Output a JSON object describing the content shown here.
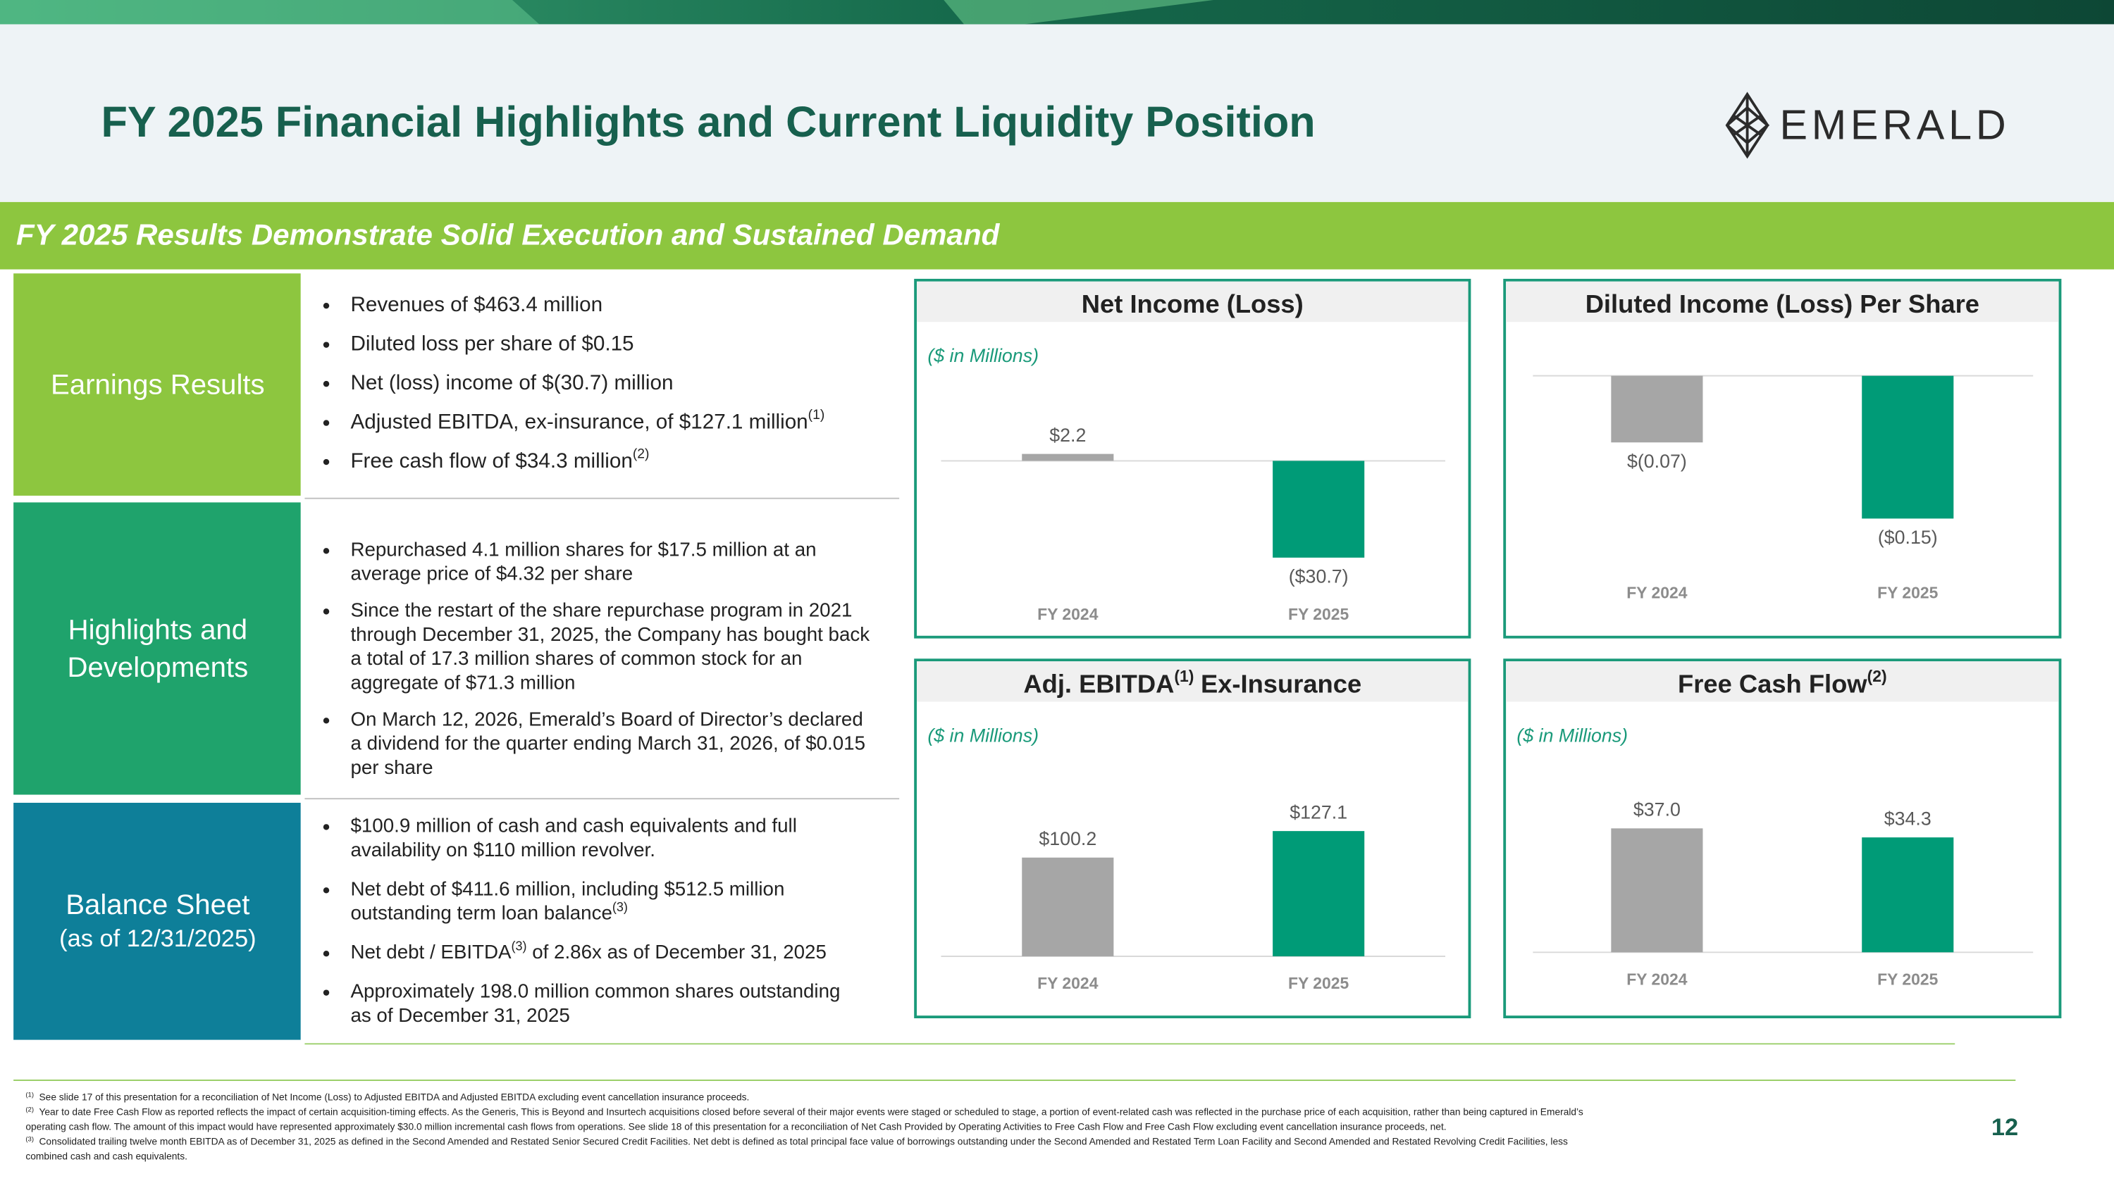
{
  "header": {
    "title": "FY 2025 Financial Highlights and Current Liquidity Position",
    "logo": "EMERALD",
    "banner": "FY 2025 Results Demonstrate Solid Execution and Sustained Demand"
  },
  "sections": [
    {
      "label": [
        "Earnings Results"
      ],
      "bullets": [
        [
          {
            "text": "Revenues of $463.4 million"
          }
        ],
        [
          {
            "text": "Diluted loss per share of $0.15"
          }
        ],
        [
          {
            "text": "Net (loss) income of $(30.7) million"
          }
        ],
        [
          {
            "text": "Adjusted EBITDA, ex-insurance, of $127.1 million",
            "sup": "(1)"
          }
        ],
        [
          {
            "text": "Free cash flow of $34.3 million",
            "sup": "(2)"
          }
        ]
      ]
    },
    {
      "label": [
        "Highlights and",
        "Developments"
      ],
      "bullets": [
        [
          {
            "text": "Repurchased 4.1 million shares for $17.5 million at an"
          },
          {
            "text": "average price of $4.32 per share"
          }
        ],
        [
          {
            "text": "Since the restart of the share repurchase program in 2021"
          },
          {
            "text": "through December 31, 2025, the Company has bought back"
          },
          {
            "text": "a total of 17.3 million shares of common stock for an"
          },
          {
            "text": "aggregate of $71.3 million"
          }
        ],
        [
          {
            "text": "On March 12, 2026, Emerald’s Board of Director’s declared"
          },
          {
            "text": "a dividend for the quarter ending March 31, 2026, of $0.015"
          },
          {
            "text": "per share"
          }
        ]
      ]
    },
    {
      "label": [
        "Balance Sheet",
        "(as of 12/31/2025)"
      ],
      "bullets": [
        [
          {
            "text": "$100.9 million of cash and cash equivalents and full"
          },
          {
            "text": "availability on $110 million revolver."
          }
        ],
        [
          {
            "text": "Net debt of $411.6 million, including $512.5 million"
          },
          {
            "text": "outstanding term loan balance",
            "sup": "(3)"
          }
        ],
        [
          {
            "text": "Net debt / EBITDA",
            "sup": "(3)",
            "after": " of 2.86x as of December 31, 2025"
          }
        ],
        [
          {
            "text": "Approximately 198.0 million common shares outstanding"
          },
          {
            "text": "as of December 31, 2025"
          }
        ]
      ]
    }
  ],
  "chart_data": [
    {
      "type": "bar",
      "title": "Net Income (Loss)",
      "subtitle": "($ in Millions)",
      "categories": [
        "FY 2024",
        "FY 2025"
      ],
      "values": [
        2.2,
        -30.7
      ],
      "value_labels": [
        "$2.2",
        "($30.7)"
      ],
      "colors": [
        "#a6a6a6",
        "#009b77"
      ]
    },
    {
      "type": "bar",
      "title": "Diluted Income (Loss) Per Share",
      "categories": [
        "FY 2024",
        "FY 2025"
      ],
      "values": [
        -0.07,
        -0.15
      ],
      "value_labels": [
        "$(0.07)",
        "($0.15)"
      ],
      "colors": [
        "#a6a6a6",
        "#009b77"
      ]
    },
    {
      "type": "bar",
      "title": "Adj. EBITDA",
      "title_sup": "(1)",
      "title_suffix": "Ex-Insurance",
      "subtitle": "($ in Millions)",
      "categories": [
        "FY 2024",
        "FY 2025"
      ],
      "values": [
        100.2,
        127.1
      ],
      "value_labels": [
        "$100.2",
        "$127.1"
      ],
      "colors": [
        "#a6a6a6",
        "#009b77"
      ]
    },
    {
      "type": "bar",
      "title": "Free Cash Flow",
      "title_sup": "(2)",
      "subtitle": "($ in Millions)",
      "categories": [
        "FY 2024",
        "FY 2025"
      ],
      "values": [
        37.0,
        34.3
      ],
      "value_labels": [
        "$37.0",
        "$34.3"
      ],
      "colors": [
        "#a6a6a6",
        "#009b77"
      ]
    }
  ],
  "footnotes": [
    {
      "sup": "(1)",
      "lines": [
        "See slide 17 of this presentation for a reconciliation of Net Income (Loss) to Adjusted EBITDA and Adjusted EBITDA excluding event cancellation insurance proceeds."
      ]
    },
    {
      "sup": "(2)",
      "lines": [
        "Year to date Free Cash Flow as reported reflects the impact of certain acquisition-timing effects. As the Generis, This is Beyond and Insurtech acquisitions closed before several of their major events were staged or scheduled to stage, a portion of event-related cash was reflected in the purchase price of each acquisition, rather than being captured in Emerald’s",
        "operating cash flow. The amount of this impact would have represented approximately $30.0 million incremental cash flows from operations. See slide 18 of this presentation for a reconciliation of Net Cash Provided by Operating Activities to Free Cash Flow and Free Cash Flow excluding event cancellation insurance proceeds, net."
      ]
    },
    {
      "sup": "(3)",
      "lines": [
        "Consolidated trailing twelve month EBITDA as of December 31, 2025 as defined in the Second Amended and Restated Senior Secured Credit Facilities. Net debt is defined as total principal face value of borrowings outstanding under the Second Amended and Restated Term Loan Facility and Second Amended and Restated Revolving Credit Facilities, less",
        "combined cash and cash equivalents."
      ]
    }
  ],
  "page_number": "12"
}
